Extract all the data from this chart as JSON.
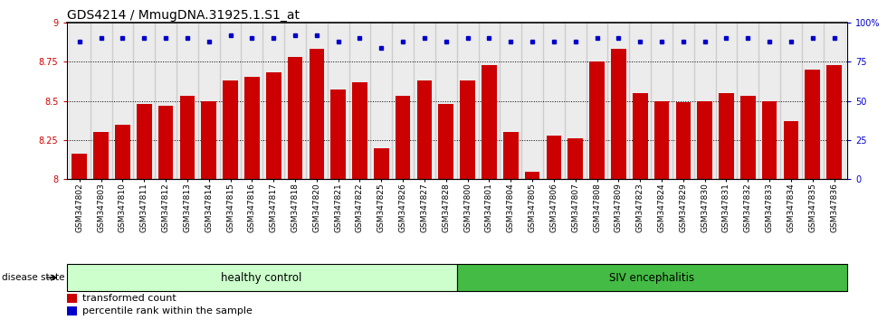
{
  "title": "GDS4214 / MmugDNA.31925.1.S1_at",
  "samples": [
    "GSM347802",
    "GSM347803",
    "GSM347810",
    "GSM347811",
    "GSM347812",
    "GSM347813",
    "GSM347814",
    "GSM347815",
    "GSM347816",
    "GSM347817",
    "GSM347818",
    "GSM347820",
    "GSM347821",
    "GSM347822",
    "GSM347825",
    "GSM347826",
    "GSM347827",
    "GSM347828",
    "GSM347800",
    "GSM347801",
    "GSM347804",
    "GSM347805",
    "GSM347806",
    "GSM347807",
    "GSM347808",
    "GSM347809",
    "GSM347823",
    "GSM347824",
    "GSM347829",
    "GSM347830",
    "GSM347831",
    "GSM347832",
    "GSM347833",
    "GSM347834",
    "GSM347835",
    "GSM347836"
  ],
  "bar_values": [
    8.16,
    8.3,
    8.35,
    8.48,
    8.47,
    8.53,
    8.5,
    8.63,
    8.65,
    8.68,
    8.78,
    8.83,
    8.57,
    8.62,
    8.2,
    8.53,
    8.63,
    8.48,
    8.63,
    8.73,
    8.3,
    8.05,
    8.28,
    8.26,
    8.75,
    8.83,
    8.55,
    8.5,
    8.49,
    8.5,
    8.55,
    8.53,
    8.5,
    8.37,
    8.7,
    8.73
  ],
  "percentile_values": [
    88,
    90,
    90,
    90,
    90,
    90,
    88,
    92,
    90,
    90,
    92,
    92,
    88,
    90,
    84,
    88,
    90,
    88,
    90,
    90,
    88,
    88,
    88,
    88,
    90,
    90,
    88,
    88,
    88,
    88,
    90,
    90,
    88,
    88,
    90,
    90
  ],
  "bar_color": "#cc0000",
  "percentile_color": "#0000cc",
  "ylim_left": [
    8.0,
    9.0
  ],
  "ylim_right": [
    0,
    100
  ],
  "yticks_left": [
    8.0,
    8.25,
    8.5,
    8.75,
    9.0
  ],
  "ytick_labels_left": [
    "8",
    "8.25",
    "8.5",
    "8.75",
    "9"
  ],
  "yticks_right": [
    0,
    25,
    50,
    75,
    100
  ],
  "ytick_labels_right": [
    "0",
    "25",
    "50",
    "75",
    "100%"
  ],
  "healthy_count": 18,
  "healthy_label": "healthy control",
  "siv_label": "SIV encephalitis",
  "healthy_color": "#ccffcc",
  "siv_color": "#44bb44",
  "disease_state_label": "disease state",
  "legend_bar_label": "transformed count",
  "legend_dot_label": "percentile rank within the sample",
  "xlabel_color": "#cc0000",
  "right_axis_color": "#0000cc",
  "title_fontsize": 10,
  "tick_fontsize": 7,
  "label_fontsize": 8,
  "bar_width": 0.7
}
